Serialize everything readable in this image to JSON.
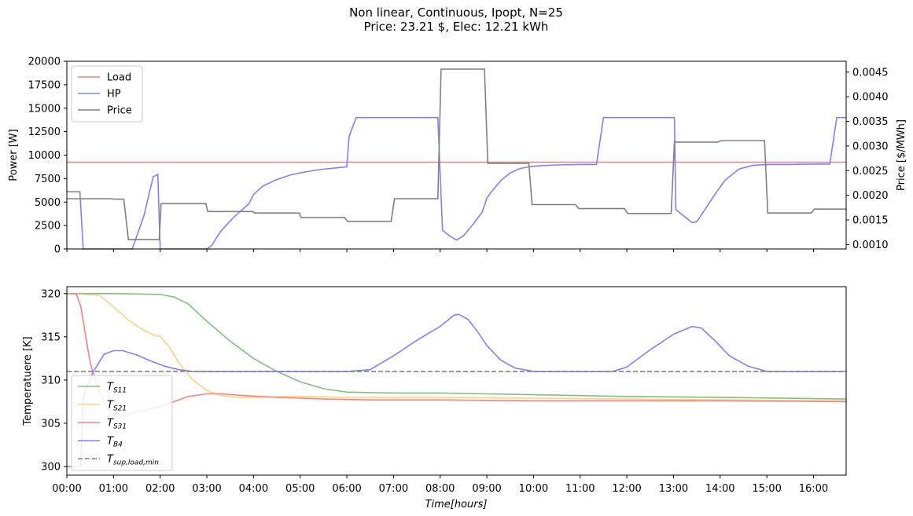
{
  "title_line1": "Non linear, Continuous, Ipopt, N=25",
  "title_line2": "Price: 23.21 $, Elec: 12.21 kWh",
  "chart_data": [
    {
      "type": "line",
      "ylabel": "Power [W]",
      "ylabel_right": "Price [$/MWh]",
      "xlim": [
        0,
        16.7
      ],
      "ylim": [
        0,
        20000
      ],
      "ylim_right": [
        0.00091,
        0.00472
      ],
      "yticks": [
        0,
        2500,
        5000,
        7500,
        10000,
        12500,
        15000,
        17500,
        20000
      ],
      "yticks_right": [
        0.001,
        0.0015,
        0.002,
        0.0025,
        0.003,
        0.0035,
        0.004,
        0.0045
      ],
      "xticks": [
        0,
        1,
        2,
        3,
        4,
        5,
        6,
        7,
        8,
        9,
        10,
        11,
        12,
        13,
        14,
        15,
        16
      ],
      "show_xticklabels": false,
      "legend": "top-left",
      "grid": false,
      "series": [
        {
          "name": "Load",
          "color": "#f08080",
          "axis": "left",
          "x": [
            0,
            16.7
          ],
          "y": [
            9250,
            9250
          ]
        },
        {
          "name": "HP",
          "color": "#8080ff",
          "axis": "left",
          "x": [
            0,
            0.28,
            0.35,
            0.75,
            1.0,
            1.4,
            1.65,
            1.85,
            1.95,
            2.0,
            2.1,
            2.5,
            3.0,
            3.1,
            3.3,
            3.6,
            3.9,
            4.0,
            4.2,
            4.5,
            4.8,
            5.1,
            5.4,
            5.7,
            6.0,
            6.05,
            6.2,
            7.2,
            7.95,
            8.05,
            8.2,
            8.35,
            8.5,
            8.7,
            8.9,
            9.0,
            9.1,
            9.3,
            9.5,
            9.7,
            9.9,
            10.1,
            10.5,
            11.0,
            11.35,
            11.5,
            11.7,
            12.3,
            12.8,
            13.02,
            13.05,
            13.3,
            13.4,
            13.5,
            13.7,
            13.9,
            14.1,
            14.4,
            14.7,
            15.0,
            15.5,
            16.0,
            16.35,
            16.5,
            16.7
          ],
          "y": [
            6100,
            6100,
            0,
            0,
            0,
            0,
            3500,
            7700,
            7950,
            0,
            0,
            0,
            0,
            350,
            1900,
            3500,
            4800,
            5800,
            6700,
            7400,
            7900,
            8200,
            8450,
            8600,
            8750,
            12000,
            14000,
            14000,
            14000,
            2000,
            1400,
            950,
            1400,
            2600,
            3900,
            5400,
            6100,
            7300,
            8100,
            8550,
            8750,
            8850,
            8950,
            9000,
            9000,
            14000,
            14000,
            14000,
            14000,
            14000,
            4200,
            3200,
            2800,
            2900,
            4400,
            5900,
            7300,
            8500,
            8900,
            9000,
            9000,
            9050,
            9050,
            14000,
            14000
          ]
        },
        {
          "name": "Price",
          "color": "#808080",
          "axis": "right",
          "x": [
            0,
            0.95,
            1.02,
            1.22,
            1.32,
            1.98,
            2.02,
            2.98,
            3.02,
            3.98,
            4.02,
            4.98,
            5.02,
            5.95,
            6.02,
            6.95,
            7.02,
            7.95,
            8.02,
            8.95,
            9.02,
            9.9,
            9.97,
            10.9,
            10.97,
            11.95,
            12.02,
            12.95,
            13.02,
            13.95,
            14.02,
            14.95,
            15.02,
            15.95,
            16.02,
            16.7
          ],
          "y": [
            0.00193,
            0.00193,
            0.00192,
            0.00192,
            0.0011,
            0.0011,
            0.00183,
            0.00183,
            0.00167,
            0.00167,
            0.00164,
            0.00164,
            0.00155,
            0.00155,
            0.00147,
            0.00147,
            0.00193,
            0.00193,
            0.00456,
            0.00456,
            0.00265,
            0.00265,
            0.00181,
            0.00181,
            0.00173,
            0.00173,
            0.00163,
            0.00163,
            0.00308,
            0.00308,
            0.00311,
            0.00311,
            0.00164,
            0.00164,
            0.00172,
            0.00172
          ]
        }
      ]
    },
    {
      "type": "line",
      "ylabel": "Temperatuere [K]",
      "xlabel": "Time[hours]",
      "xlim": [
        0,
        16.7
      ],
      "ylim": [
        299.0,
        320.8
      ],
      "yticks": [
        300,
        305,
        310,
        315,
        320
      ],
      "xticks": [
        0,
        1,
        2,
        3,
        4,
        5,
        6,
        7,
        8,
        9,
        10,
        11,
        12,
        13,
        14,
        15,
        16
      ],
      "xticklabels": [
        "00:00",
        "01:00",
        "02:00",
        "03:00",
        "04:00",
        "05:00",
        "06:00",
        "07:00",
        "08:00",
        "09:00",
        "10:00",
        "11:00",
        "12:00",
        "13:00",
        "14:00",
        "15:00",
        "16:00"
      ],
      "legend": "bottom-left",
      "grid": false,
      "series": [
        {
          "name": "T",
          "sub": "S11",
          "color": "#80c080",
          "dash": false,
          "x": [
            0,
            1,
            1.6,
            2.0,
            2.3,
            2.6,
            3.0,
            3.5,
            4.0,
            4.5,
            5.0,
            5.5,
            6.0,
            7.0,
            8.0,
            9.0,
            10.0,
            11.0,
            12.0,
            14.0,
            16.7
          ],
          "y": [
            320,
            320,
            319.95,
            319.9,
            319.6,
            318.8,
            316.8,
            314.5,
            312.5,
            311.0,
            309.8,
            309.0,
            308.6,
            308.5,
            308.5,
            308.4,
            308.3,
            308.2,
            308.1,
            308.0,
            307.8
          ]
        },
        {
          "name": "T",
          "sub": "S21",
          "color": "#ffd280",
          "dash": false,
          "x": [
            0,
            0.7,
            1.0,
            1.3,
            1.6,
            1.9,
            2.0,
            2.2,
            2.4,
            2.7,
            3.0,
            3.3,
            3.6,
            4.0,
            5.0,
            6.0,
            8.0,
            10.0,
            12.0,
            14.0,
            16.7
          ],
          "y": [
            320,
            319.8,
            318.5,
            317.0,
            315.9,
            315.1,
            315.1,
            313.8,
            312.0,
            310.0,
            308.8,
            308.2,
            308.0,
            308.0,
            308.1,
            308.0,
            308.0,
            307.9,
            307.8,
            307.7,
            307.6
          ]
        },
        {
          "name": "T",
          "sub": "S31",
          "color": "#ff8080",
          "dash": false,
          "x": [
            0,
            0.2,
            0.3,
            0.4,
            0.5,
            0.7,
            0.9,
            1.2,
            1.5,
            1.8,
            2.0,
            2.3,
            2.6,
            3.0,
            3.3,
            3.8,
            4.5,
            5.5,
            6.5,
            8.0,
            10.0,
            12.0,
            14.0,
            16.7
          ],
          "y": [
            320,
            320,
            318.5,
            315.2,
            312.0,
            308.5,
            306.5,
            305.8,
            306.3,
            306.7,
            306.9,
            307.5,
            308.1,
            308.4,
            308.4,
            308.2,
            308.0,
            307.8,
            307.7,
            307.7,
            307.6,
            307.6,
            307.6,
            307.5
          ]
        },
        {
          "name": "T",
          "sub": "B4",
          "color": "#8080ff",
          "dash": false,
          "x": [
            0,
            0.3,
            0.35,
            0.55,
            0.8,
            1.0,
            1.2,
            1.5,
            1.8,
            2.1,
            2.4,
            2.7,
            3.0,
            4.0,
            5.0,
            6.0,
            6.5,
            7.0,
            7.5,
            8.0,
            8.3,
            8.4,
            8.6,
            8.8,
            9.0,
            9.3,
            9.6,
            10.0,
            11.0,
            11.7,
            12.0,
            12.5,
            13.0,
            13.4,
            13.6,
            13.9,
            14.2,
            14.6,
            15.0,
            16.7
          ],
          "y": [
            300,
            300,
            308,
            310.8,
            313.0,
            313.4,
            313.4,
            312.9,
            312.2,
            311.6,
            311.2,
            311.0,
            311.0,
            311.0,
            311.0,
            311.0,
            311.2,
            312.8,
            314.6,
            316.2,
            317.5,
            317.6,
            317.0,
            315.6,
            314.0,
            312.3,
            311.4,
            311.0,
            311.0,
            311.0,
            311.5,
            313.5,
            315.3,
            316.2,
            316.0,
            314.5,
            312.8,
            311.6,
            311.0,
            311.0
          ]
        },
        {
          "name": "T",
          "sub": "sup,load,min",
          "color": "#808080",
          "dash": true,
          "x": [
            0,
            16.7
          ],
          "y": [
            311,
            311
          ]
        }
      ]
    }
  ]
}
